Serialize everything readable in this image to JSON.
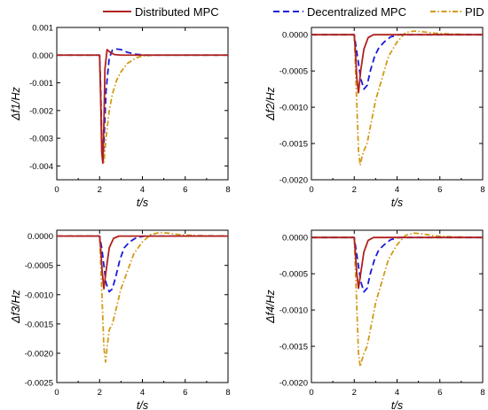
{
  "legend": [
    {
      "label": "Distributed MPC",
      "color": "#b0211d",
      "dash": "solid"
    },
    {
      "label": "Decentralized MPC",
      "color": "#1a1adb",
      "dash": "dash"
    },
    {
      "label": "PID",
      "color": "#d39a18",
      "dash": "dashdot"
    }
  ],
  "chart_data": [
    {
      "type": "line",
      "xlabel": "t/s",
      "ylabel": "Δf1/Hz",
      "xlim": [
        0,
        8
      ],
      "ylim": [
        -0.0045,
        0.001
      ],
      "xticks": [
        "0",
        "2",
        "4",
        "6",
        "8"
      ],
      "yticks": [
        "0.001",
        "0.000",
        "-0.001",
        "-0.002",
        "-0.003",
        "-0.004"
      ],
      "series": [
        {
          "name": "Distributed MPC",
          "x": [
            0,
            2.0,
            2.05,
            2.1,
            2.15,
            2.2,
            2.25,
            2.35,
            2.5,
            2.7,
            3.0,
            8
          ],
          "y": [
            0,
            0,
            -0.0015,
            -0.0035,
            -0.0039,
            -0.0025,
            -0.0005,
            0.0002,
            0.0001,
            2e-05,
            0,
            0
          ]
        },
        {
          "name": "Decentralized MPC",
          "x": [
            0,
            2.0,
            2.05,
            2.1,
            2.15,
            2.2,
            2.3,
            2.45,
            2.6,
            2.8,
            3.0,
            3.3,
            3.7,
            4.2,
            8
          ],
          "y": [
            0,
            0,
            -0.0012,
            -0.003,
            -0.0038,
            -0.0032,
            -0.0013,
            -0.0001,
            0.00018,
            0.00022,
            0.0002,
            0.0001,
            3e-05,
            0,
            0
          ]
        },
        {
          "name": "PID",
          "x": [
            0,
            2.0,
            2.05,
            2.12,
            2.2,
            2.3,
            2.45,
            2.6,
            2.8,
            3.0,
            3.3,
            3.7,
            4.0,
            4.5,
            8
          ],
          "y": [
            0,
            0,
            -0.0015,
            -0.0036,
            -0.0039,
            -0.003,
            -0.002,
            -0.0014,
            -0.0009,
            -0.0006,
            -0.0003,
            -0.0001,
            -3e-05,
            0,
            0
          ]
        }
      ]
    },
    {
      "type": "line",
      "xlabel": "t/s",
      "ylabel": "Δf2/Hz",
      "xlim": [
        0,
        8
      ],
      "ylim": [
        -0.002,
        0.0001
      ],
      "xticks": [
        "0",
        "2",
        "4",
        "6",
        "8"
      ],
      "yticks": [
        "0.0000",
        "-0.0005",
        "-0.0010",
        "-0.0015",
        "-0.0020"
      ],
      "series": [
        {
          "name": "Distributed MPC",
          "x": [
            0,
            2.0,
            2.05,
            2.12,
            2.2,
            2.3,
            2.45,
            2.65,
            2.9,
            8
          ],
          "y": [
            0,
            0,
            -0.0002,
            -0.0006,
            -0.0008,
            -0.0005,
            -0.0002,
            -4e-05,
            0,
            0
          ]
        },
        {
          "name": "Decentralized MPC",
          "x": [
            0,
            2.0,
            2.1,
            2.2,
            2.3,
            2.45,
            2.6,
            2.75,
            2.95,
            3.15,
            3.4,
            3.7,
            4.1,
            8
          ],
          "y": [
            0,
            0,
            -0.0002,
            -0.0004,
            -0.0006,
            -0.00075,
            -0.0007,
            -0.0005,
            -0.0003,
            -0.00018,
            -0.0001,
            -3e-05,
            0,
            0
          ]
        },
        {
          "name": "PID",
          "x": [
            0,
            2.0,
            2.1,
            2.2,
            2.28,
            2.35,
            2.45,
            2.6,
            2.8,
            3.0,
            3.3,
            3.6,
            4.0,
            4.4,
            4.8,
            5.2,
            5.8,
            6.5,
            8
          ],
          "y": [
            0,
            0,
            -0.0008,
            -0.0016,
            -0.0018,
            -0.0017,
            -0.0016,
            -0.0015,
            -0.0012,
            -0.0009,
            -0.0006,
            -0.0003,
            -0.0001,
            3e-05,
            5e-05,
            4e-05,
            2e-05,
            1e-05,
            0
          ]
        }
      ]
    },
    {
      "type": "line",
      "xlabel": "t/s",
      "ylabel": "Δf3/Hz",
      "xlim": [
        0,
        8
      ],
      "ylim": [
        -0.0025,
        0.0001
      ],
      "xticks": [
        "0",
        "2",
        "4",
        "6",
        "8"
      ],
      "yticks": [
        "0.0000",
        "-0.0005",
        "-0.0010",
        "-0.0015",
        "-0.0020",
        "-0.0025"
      ],
      "series": [
        {
          "name": "Distributed MPC",
          "x": [
            0,
            2.0,
            2.05,
            2.12,
            2.2,
            2.3,
            2.45,
            2.65,
            2.9,
            8
          ],
          "y": [
            0,
            0,
            -0.0002,
            -0.0006,
            -0.0009,
            -0.0006,
            -0.0002,
            -4e-05,
            0,
            0
          ]
        },
        {
          "name": "Decentralized MPC",
          "x": [
            0,
            2.0,
            2.1,
            2.2,
            2.3,
            2.45,
            2.6,
            2.75,
            2.95,
            3.15,
            3.4,
            3.7,
            4.1,
            8
          ],
          "y": [
            0,
            0,
            -0.0002,
            -0.0005,
            -0.0008,
            -0.00095,
            -0.0009,
            -0.0007,
            -0.0004,
            -0.0002,
            -0.0001,
            -3e-05,
            0,
            0
          ]
        },
        {
          "name": "PID",
          "x": [
            0,
            2.0,
            2.1,
            2.2,
            2.28,
            2.35,
            2.45,
            2.6,
            2.8,
            3.0,
            3.3,
            3.6,
            4.0,
            4.4,
            4.8,
            5.2,
            5.8,
            6.5,
            8
          ],
          "y": [
            0,
            0,
            -0.0009,
            -0.0019,
            -0.00215,
            -0.0019,
            -0.0016,
            -0.0015,
            -0.0012,
            -0.0009,
            -0.0006,
            -0.0003,
            -0.0001,
            3e-05,
            6e-05,
            5e-05,
            2e-05,
            1e-05,
            0
          ]
        }
      ]
    },
    {
      "type": "line",
      "xlabel": "t/s",
      "ylabel": "Δf4/Hz",
      "xlim": [
        0,
        8
      ],
      "ylim": [
        -0.002,
        0.0001
      ],
      "xticks": [
        "0",
        "2",
        "4",
        "6",
        "8"
      ],
      "yticks": [
        "0.0000",
        "-0.0005",
        "-0.0010",
        "-0.0015",
        "-0.0020"
      ],
      "series": [
        {
          "name": "Distributed MPC",
          "x": [
            0,
            2.0,
            2.05,
            2.12,
            2.2,
            2.3,
            2.45,
            2.65,
            2.9,
            8
          ],
          "y": [
            0,
            0,
            -0.0002,
            -0.0005,
            -0.0007,
            -0.0005,
            -0.0002,
            -4e-05,
            0,
            0
          ]
        },
        {
          "name": "Decentralized MPC",
          "x": [
            0,
            2.0,
            2.1,
            2.2,
            2.3,
            2.45,
            2.6,
            2.75,
            2.95,
            3.15,
            3.4,
            3.7,
            4.1,
            8
          ],
          "y": [
            0,
            0,
            -0.0002,
            -0.0004,
            -0.0006,
            -0.00075,
            -0.0007,
            -0.0005,
            -0.0003,
            -0.00017,
            -0.0001,
            -3e-05,
            0,
            0
          ]
        },
        {
          "name": "PID",
          "x": [
            0,
            2.0,
            2.1,
            2.2,
            2.28,
            2.35,
            2.45,
            2.6,
            2.8,
            3.0,
            3.3,
            3.6,
            4.0,
            4.4,
            4.8,
            5.2,
            5.8,
            6.5,
            8
          ],
          "y": [
            0,
            0,
            -0.0008,
            -0.0016,
            -0.00178,
            -0.0017,
            -0.0016,
            -0.0015,
            -0.0012,
            -0.0009,
            -0.0006,
            -0.0003,
            -0.0001,
            3e-05,
            6e-05,
            5e-05,
            2e-05,
            1e-05,
            0
          ]
        }
      ]
    }
  ]
}
